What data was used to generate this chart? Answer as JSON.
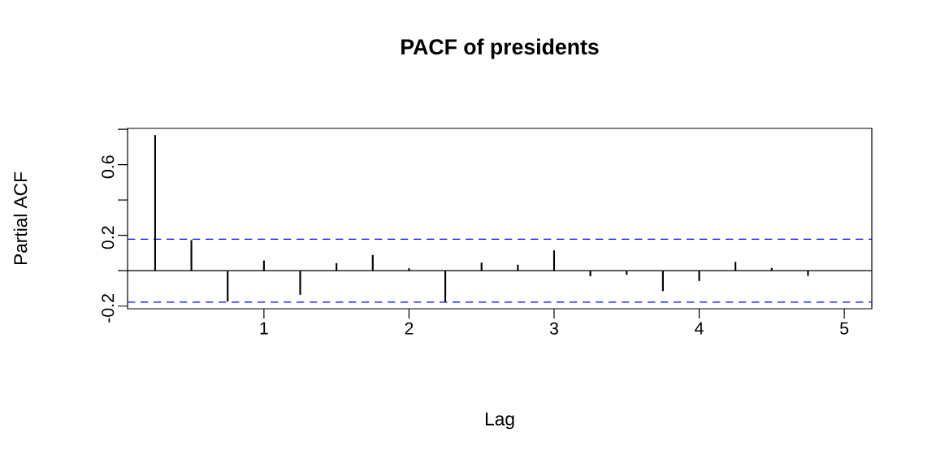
{
  "chart_data": {
    "type": "bar",
    "title": "PACF of presidents",
    "xlabel": "Lag",
    "ylabel": "Partial ACF",
    "color": "#000000",
    "x": [
      0.25,
      0.5,
      0.75,
      1.0,
      1.25,
      1.5,
      1.75,
      2.0,
      2.25,
      2.5,
      2.75,
      3.0,
      3.25,
      3.5,
      3.75,
      4.0,
      4.25,
      4.5,
      4.75,
      5.0
    ],
    "values": [
      0.767,
      0.173,
      -0.174,
      0.058,
      -0.136,
      0.043,
      0.089,
      0.014,
      -0.176,
      0.046,
      0.034,
      0.115,
      -0.031,
      -0.023,
      -0.115,
      -0.058,
      0.05,
      0.015,
      -0.029,
      0.0
    ],
    "xlim": [
      0.06,
      5.19
    ],
    "ylim": [
      -0.215,
      0.805
    ],
    "xticks": [
      1,
      2,
      3,
      4,
      5
    ],
    "yticks": [
      {
        "value": -0.2,
        "label": "-0.2"
      },
      {
        "value": 0,
        "label": null
      },
      {
        "value": 0.2,
        "label": "0.2"
      },
      {
        "value": 0.4,
        "label": null
      },
      {
        "value": 0.6,
        "label": "0.6"
      },
      {
        "value": 0.8,
        "label": null
      }
    ],
    "ref_lines": [
      {
        "axis": "y",
        "value": 0,
        "color": "#000000",
        "line_style": "solid"
      },
      {
        "axis": "y",
        "value": 0.178,
        "color": "#0000ff",
        "line_style": "dashed"
      },
      {
        "axis": "y",
        "value": -0.178,
        "color": "#0000ff",
        "line_style": "dashed"
      }
    ],
    "grid": false
  }
}
